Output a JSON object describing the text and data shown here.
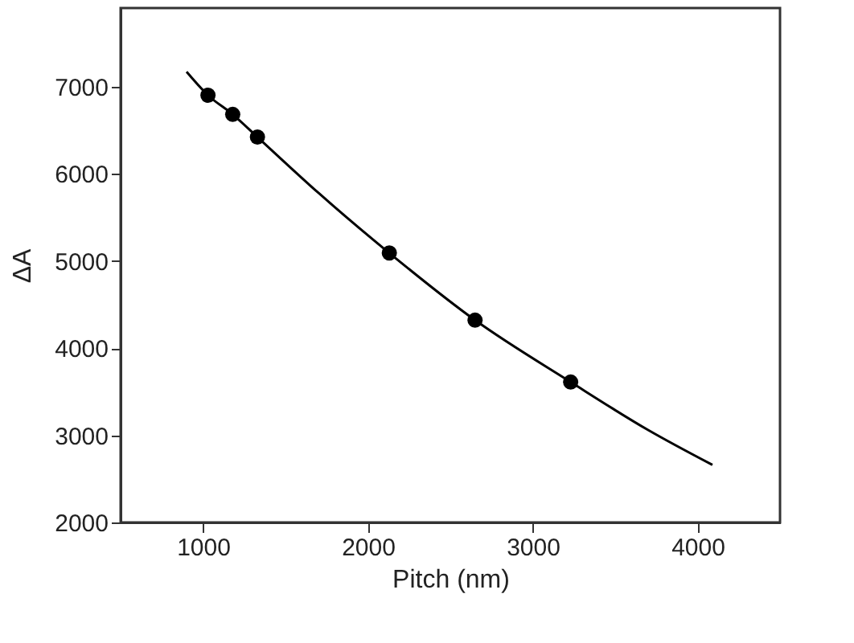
{
  "chart_data": {
    "type": "scatter",
    "xlabel": "Pitch (nm)",
    "ylabel": "ΔA",
    "xlim": [
      500,
      4500
    ],
    "xticks": [
      1000,
      2000,
      3000,
      4000
    ],
    "ylim": [
      2000,
      7900
    ],
    "yticks": [
      2000,
      3000,
      4000,
      5000,
      6000,
      7000
    ],
    "grid": false,
    "marker": "circle",
    "series": [
      {
        "color": "#000000",
        "x": [
          1030,
          1180,
          1330,
          2130,
          2650,
          3230
        ],
        "values": [
          6900,
          6680,
          6420,
          5090,
          4320,
          3610
        ]
      },
      {
        "type": "line",
        "marker": "none",
        "line_style": "solid",
        "color": "#000000",
        "x": [
          900,
          1030,
          1180,
          1330,
          1700,
          2130,
          2650,
          3230,
          3700,
          4090
        ],
        "values": [
          7170,
          6900,
          6680,
          6420,
          5780,
          5090,
          4320,
          3610,
          3060,
          2660
        ]
      }
    ]
  }
}
